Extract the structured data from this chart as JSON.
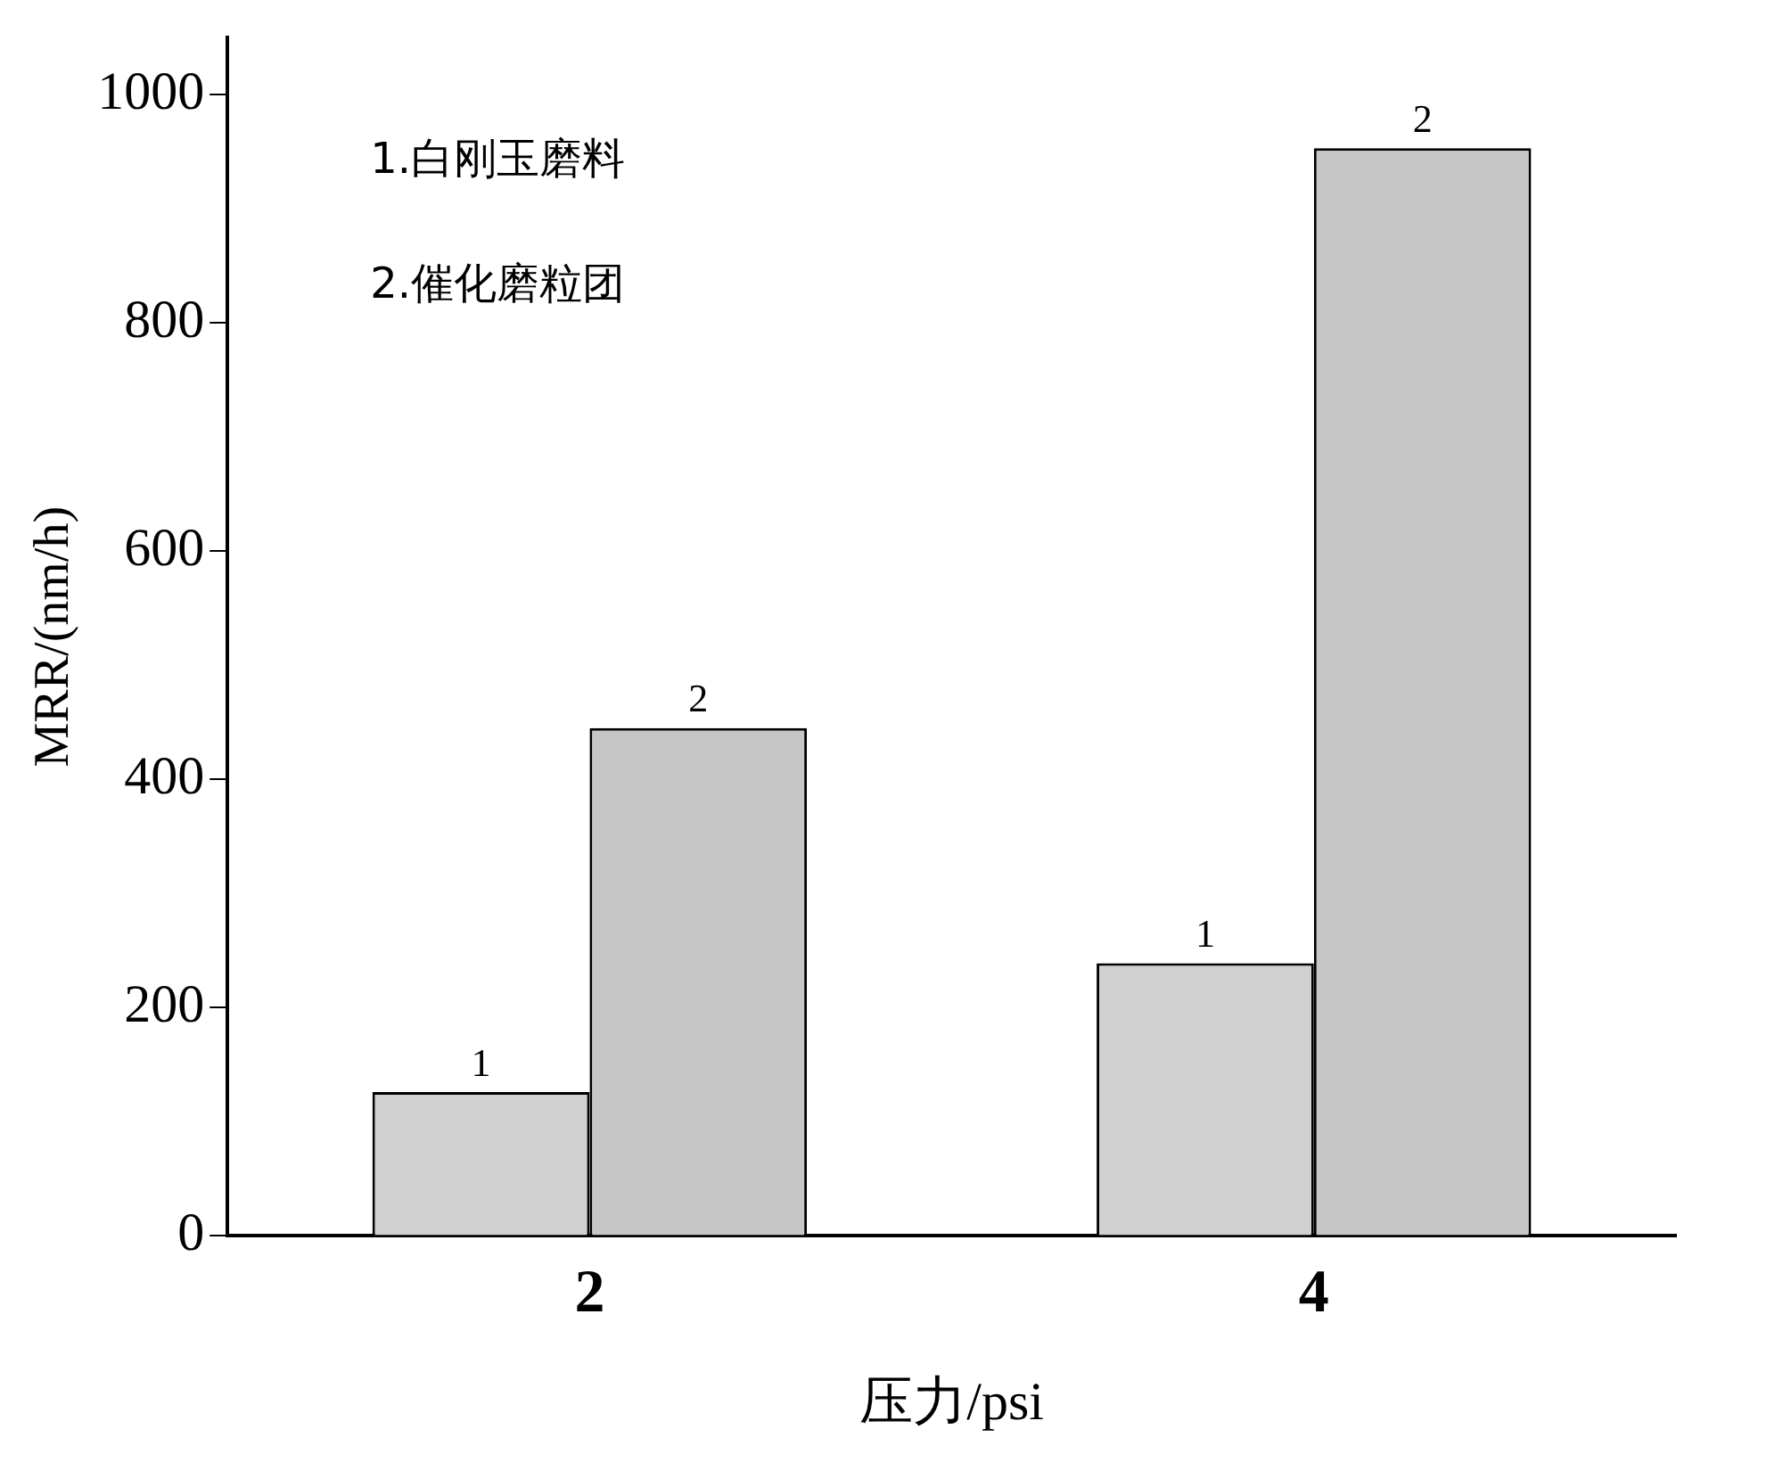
{
  "chart_data": {
    "type": "bar",
    "xlabel": "压力/psi",
    "ylabel": "MRR/(nm/h)",
    "categories": [
      "2",
      "4"
    ],
    "series": [
      {
        "name": "1",
        "color": "#d0d0d0",
        "values": [
          126,
          239
        ]
      },
      {
        "name": "2",
        "color": "#c6c6c6",
        "values": [
          445,
          953
        ]
      }
    ],
    "ylim": [
      0,
      1050
    ],
    "yticks": [
      0,
      200,
      400,
      600,
      800,
      1000
    ],
    "grid": false,
    "legend": false,
    "annotations": [
      "1.白刚玉磨料",
      "2.催化磨粒团"
    ]
  }
}
